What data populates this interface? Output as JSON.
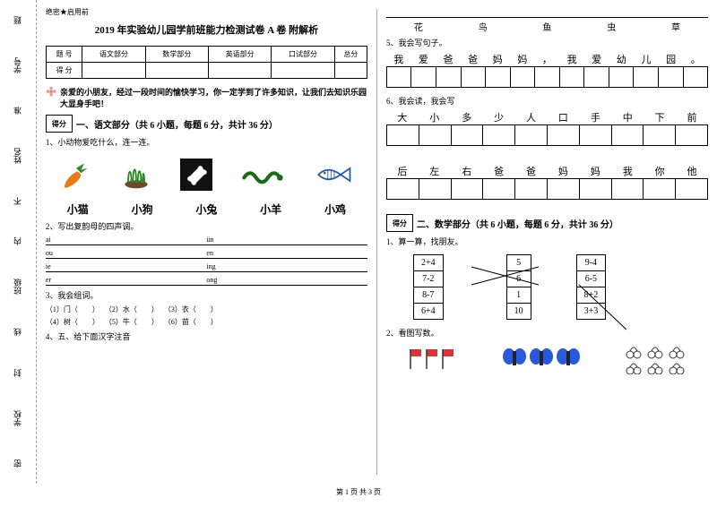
{
  "margin": {
    "labels": [
      "题",
      "学号",
      "准",
      "姓名",
      "不",
      "内",
      "班级",
      "线",
      "封",
      "学校",
      "密"
    ]
  },
  "header": {
    "secret": "绝密★启用前",
    "title": "2019 年实验幼儿园学前班能力检测试卷 A 卷 附解析"
  },
  "scoreTable": {
    "headers": [
      "题 号",
      "语文部分",
      "数学部分",
      "英语部分",
      "口试部分",
      "总分"
    ],
    "row2": "得 分"
  },
  "intro": {
    "text": "亲爱的小朋友，经过一段时间的愉快学习，你一定学到了许多知识，让我们去知识乐园大显身手吧！"
  },
  "section1": {
    "boxLabel": "得分",
    "title": "一、语文部分（共 6 小题，每题 6 分，共计 36 分）",
    "q1": "1、小动物爱吃什么，连一连。",
    "animals": [
      "小猫",
      "小狗",
      "小兔",
      "小羊",
      "小鸡"
    ],
    "q2": "2、写出复韵母的四声调。",
    "vowels": [
      [
        "ai",
        "ün"
      ],
      [
        "ou",
        "en"
      ],
      [
        "ie",
        "ing"
      ],
      [
        "er",
        "ong"
      ]
    ],
    "q3": "3、我会组词。",
    "q3items": [
      "（1）门（　　）",
      "（2）水（　　）",
      "（3）衣（　　）",
      "（4）树（　　）",
      "（5）牛（　　）",
      "（6）苗（　　）"
    ],
    "q4": "4、五、给下面汉字注音"
  },
  "rightTop": {
    "chars4": [
      "花",
      "鸟",
      "鱼",
      "虫",
      "草"
    ],
    "q5": "5、我会写句子。",
    "sentence": [
      "我",
      "爱",
      "爸",
      "爸",
      "妈",
      "妈",
      "，",
      "我",
      "爱",
      "幼",
      "儿",
      "园",
      "。"
    ],
    "q6": "6、我会读，我会写",
    "row6a": [
      "大",
      "小",
      "多",
      "少",
      "人",
      "口",
      "手",
      "中",
      "下",
      "前"
    ],
    "row6b": [
      "后",
      "左",
      "右",
      "爸",
      "爸",
      "妈",
      "妈",
      "我",
      "你",
      "他"
    ]
  },
  "section2": {
    "boxLabel": "得分",
    "title": "二、数学部分（共 6 小题，每题 6 分，共计 36 分）",
    "q1": "1、算一算，找朋友。",
    "colA": [
      "2+4",
      "7-2",
      "8-7",
      "6+4"
    ],
    "colB": [
      "5",
      "6",
      "1",
      "10"
    ],
    "colC": [
      "9-4",
      "6-5",
      "8+2",
      "3+3"
    ],
    "q2": "2、看图写数。"
  },
  "footer": "第 1 页 共 3 页"
}
